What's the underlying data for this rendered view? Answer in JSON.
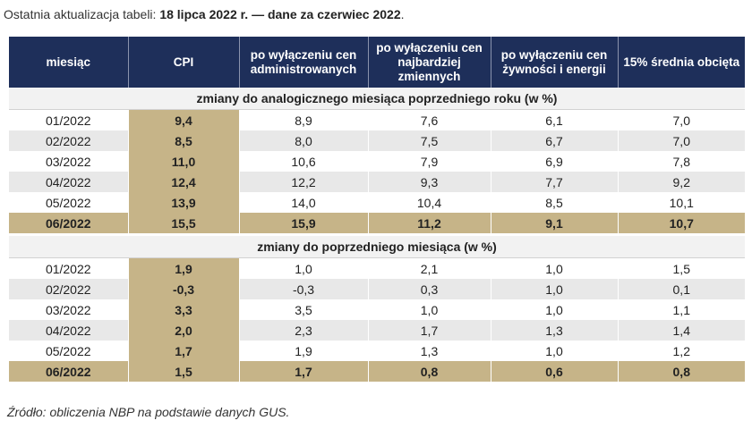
{
  "caption": {
    "prefix": "Ostatnia aktualizacja tabeli: ",
    "emphasis": "18 lipca 2022 r. — dane za czerwiec 2022",
    "suffix": "."
  },
  "table": {
    "headers": {
      "month": "miesiąc",
      "cpi": "CPI",
      "admin": "po wyłączeniu cen administrowanych",
      "volatile": "po wyłączeniu cen najbardziej zmiennych",
      "food_energy": "po wyłączeniu cen żywności i energii",
      "trimmed": "15% średnia obcięta"
    },
    "sections": [
      {
        "title": "zmiany do analogicznego miesiąca poprzedniego roku (w %)",
        "rows": [
          [
            "01/2022",
            "9,4",
            "8,9",
            "7,6",
            "6,1",
            "7,0"
          ],
          [
            "02/2022",
            "8,5",
            "8,0",
            "7,5",
            "6,7",
            "7,0"
          ],
          [
            "03/2022",
            "11,0",
            "10,6",
            "7,9",
            "6,9",
            "7,8"
          ],
          [
            "04/2022",
            "12,4",
            "12,2",
            "9,3",
            "7,7",
            "9,2"
          ],
          [
            "05/2022",
            "13,9",
            "14,0",
            "10,4",
            "8,5",
            "10,1"
          ],
          [
            "06/2022",
            "15,5",
            "15,9",
            "11,2",
            "9,1",
            "10,7"
          ]
        ]
      },
      {
        "title": "zmiany do poprzedniego miesiąca (w %)",
        "rows": [
          [
            "01/2022",
            "1,9",
            "1,0",
            "2,1",
            "1,0",
            "1,5"
          ],
          [
            "02/2022",
            "-0,3",
            "-0,3",
            "0,3",
            "1,0",
            "0,1"
          ],
          [
            "03/2022",
            "3,3",
            "3,5",
            "1,0",
            "1,0",
            "1,1"
          ],
          [
            "04/2022",
            "2,0",
            "2,3",
            "1,7",
            "1,3",
            "1,4"
          ],
          [
            "05/2022",
            "1,7",
            "1,9",
            "1,3",
            "1,0",
            "1,2"
          ],
          [
            "06/2022",
            "1,5",
            "1,7",
            "0,8",
            "0,6",
            "0,8"
          ]
        ]
      }
    ]
  },
  "source": "Źródło: obliczenia NBP na podstawie danych GUS.",
  "colors": {
    "header_bg": "#1e2f5a",
    "highlight": "#c6b488",
    "stripe": "#e8e8e8",
    "section_bg": "#f2f2f2"
  }
}
